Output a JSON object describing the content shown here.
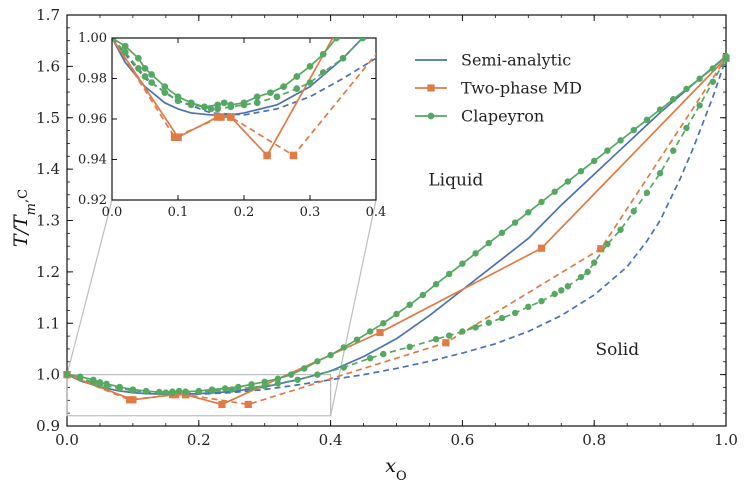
{
  "chart_data": {
    "type": "line",
    "xlabel": "x_O",
    "ylabel": "T/T_{m,C}",
    "xlim": [
      0.0,
      1.0
    ],
    "ylim": [
      0.9,
      1.7
    ],
    "x_ticks": [
      "0.0",
      "0.2",
      "0.4",
      "0.6",
      "0.8",
      "1.0"
    ],
    "y_ticks": [
      "0.9",
      "1.0",
      "1.1",
      "1.2",
      "1.3",
      "1.4",
      "1.5",
      "1.6",
      "1.7"
    ],
    "annotations": [
      {
        "text": "Liquid",
        "x": 0.59,
        "y": 1.38
      },
      {
        "text": "Solid",
        "x": 0.835,
        "y": 1.05
      }
    ],
    "legend": {
      "position": "top-right",
      "entries": [
        {
          "label": "Semi-analytic",
          "color": "#4a72b0",
          "marker": "none"
        },
        {
          "label": "Two-phase MD",
          "color": "#e07b45",
          "marker": "square"
        },
        {
          "label": "Clapeyron",
          "color": "#55a861",
          "marker": "circle"
        }
      ]
    },
    "series": [
      {
        "name": "Semi-analytic",
        "role": "liquidus",
        "color": "#4a72b0",
        "dash": "solid",
        "marker": "none",
        "x": [
          0,
          0.02,
          0.05,
          0.08,
          0.1,
          0.12,
          0.15,
          0.18,
          0.2,
          0.25,
          0.3,
          0.35,
          0.4,
          0.45,
          0.5,
          0.55,
          0.6,
          0.65,
          0.7,
          0.75,
          0.8,
          0.85,
          0.9,
          0.95,
          1.0
        ],
        "y": [
          1.0,
          0.988,
          0.976,
          0.968,
          0.965,
          0.963,
          0.962,
          0.962,
          0.963,
          0.967,
          0.976,
          0.99,
          1.007,
          1.035,
          1.07,
          1.115,
          1.165,
          1.215,
          1.265,
          1.33,
          1.39,
          1.45,
          1.51,
          1.565,
          1.62
        ]
      },
      {
        "name": "Semi-analytic",
        "role": "solidus",
        "color": "#4a72b0",
        "dash": "dashed",
        "marker": "none",
        "x": [
          0,
          0.05,
          0.1,
          0.15,
          0.2,
          0.25,
          0.3,
          0.35,
          0.4,
          0.45,
          0.5,
          0.55,
          0.6,
          0.65,
          0.7,
          0.75,
          0.8,
          0.85,
          0.88,
          0.9,
          0.93,
          0.95,
          0.98,
          1.0
        ],
        "y": [
          1.0,
          0.98,
          0.969,
          0.963,
          0.962,
          0.965,
          0.971,
          0.98,
          0.99,
          1.0,
          1.012,
          1.026,
          1.042,
          1.06,
          1.084,
          1.115,
          1.155,
          1.21,
          1.26,
          1.3,
          1.38,
          1.44,
          1.54,
          1.615
        ]
      },
      {
        "name": "Two-phase MD",
        "role": "liquidus",
        "color": "#e07b45",
        "dash": "solid",
        "marker": "square",
        "x": [
          0.0,
          0.1,
          0.16,
          0.18,
          0.235,
          0.475,
          0.72,
          1.0
        ],
        "y": [
          1.0,
          0.951,
          0.961,
          0.961,
          0.942,
          1.082,
          1.246,
          1.616
        ]
      },
      {
        "name": "Two-phase MD",
        "role": "solidus",
        "color": "#e07b45",
        "dash": "dashed",
        "marker": "square",
        "x": [
          0.0,
          0.095,
          0.165,
          0.18,
          0.275,
          0.575,
          0.81,
          1.0
        ],
        "y": [
          1.0,
          0.951,
          0.961,
          0.961,
          0.942,
          1.062,
          1.245,
          1.616
        ]
      },
      {
        "name": "Clapeyron",
        "role": "liquidus",
        "color": "#55a861",
        "dash": "solid",
        "marker": "circle",
        "x": [
          0.0,
          0.02,
          0.04,
          0.05,
          0.06,
          0.08,
          0.1,
          0.12,
          0.14,
          0.16,
          0.17,
          0.18,
          0.2,
          0.22,
          0.24,
          0.26,
          0.28,
          0.3,
          0.32,
          0.34,
          0.36,
          0.38,
          0.4,
          0.42,
          0.44,
          0.46,
          0.48,
          0.5,
          0.52,
          0.54,
          0.56,
          0.58,
          0.6,
          0.62,
          0.64,
          0.66,
          0.68,
          0.7,
          0.72,
          0.74,
          0.76,
          0.78,
          0.8,
          0.82,
          0.84,
          0.86,
          0.88,
          0.9,
          0.92,
          0.94,
          0.96,
          0.98,
          1.0
        ],
        "y": [
          1.0,
          0.996,
          0.99,
          0.985,
          0.982,
          0.976,
          0.971,
          0.968,
          0.966,
          0.967,
          0.968,
          0.967,
          0.968,
          0.971,
          0.973,
          0.976,
          0.981,
          0.986,
          0.992,
          1.0,
          1.012,
          1.026,
          1.038,
          1.053,
          1.068,
          1.084,
          1.1,
          1.118,
          1.136,
          1.155,
          1.176,
          1.196,
          1.216,
          1.236,
          1.256,
          1.276,
          1.296,
          1.316,
          1.336,
          1.356,
          1.376,
          1.396,
          1.416,
          1.436,
          1.456,
          1.476,
          1.496,
          1.516,
          1.536,
          1.556,
          1.576,
          1.596,
          1.62
        ]
      },
      {
        "name": "Clapeyron",
        "role": "solidus",
        "color": "#55a861",
        "dash": "dashed",
        "marker": "circle",
        "x": [
          0.0,
          0.02,
          0.04,
          0.05,
          0.06,
          0.08,
          0.1,
          0.12,
          0.14,
          0.15,
          0.16,
          0.18,
          0.2,
          0.22,
          0.25,
          0.28,
          0.3,
          0.32,
          0.35,
          0.38,
          0.42,
          0.46,
          0.48,
          0.52,
          0.56,
          0.58,
          0.6,
          0.62,
          0.64,
          0.66,
          0.68,
          0.7,
          0.72,
          0.74,
          0.75,
          0.76,
          0.78,
          0.79,
          0.8,
          0.82,
          0.84,
          0.86,
          0.88,
          0.9,
          0.92,
          0.94,
          0.96,
          0.98,
          1.0
        ],
        "y": [
          1.0,
          0.993,
          0.985,
          0.981,
          0.978,
          0.973,
          0.969,
          0.967,
          0.966,
          0.965,
          0.965,
          0.966,
          0.967,
          0.968,
          0.971,
          0.975,
          0.978,
          0.983,
          0.99,
          1.0,
          1.014,
          1.032,
          1.04,
          1.054,
          1.069,
          1.076,
          1.084,
          1.092,
          1.101,
          1.11,
          1.12,
          1.132,
          1.143,
          1.157,
          1.164,
          1.172,
          1.19,
          1.2,
          1.218,
          1.254,
          1.282,
          1.318,
          1.354,
          1.392,
          1.436,
          1.48,
          1.524,
          1.57,
          1.615
        ]
      }
    ],
    "inset": {
      "xlim": [
        0.0,
        0.4
      ],
      "ylim": [
        0.92,
        1.0
      ],
      "x_ticks": [
        "0.0",
        "0.1",
        "0.2",
        "0.3",
        "0.4"
      ],
      "y_ticks": [
        "0.92",
        "0.94",
        "0.96",
        "0.98",
        "1.00"
      ]
    }
  }
}
